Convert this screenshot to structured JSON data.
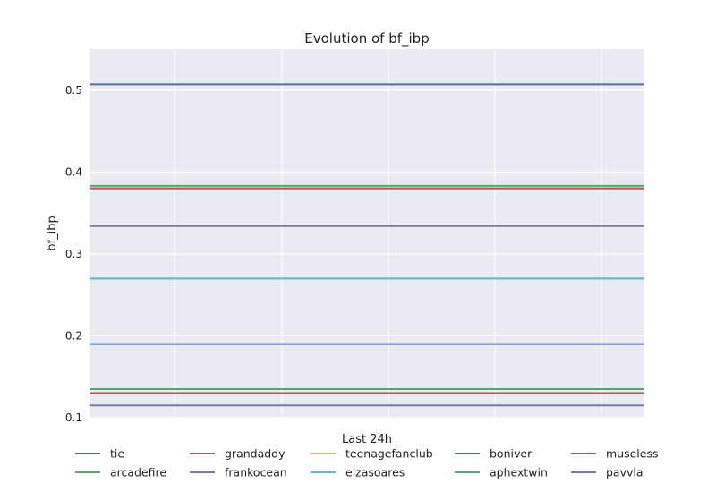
{
  "chart_data": {
    "type": "line",
    "title": "Evolution of bf_ibp",
    "xlabel": "Last 24h",
    "ylabel": "bf_ibp",
    "ylim": [
      0.1,
      0.55
    ],
    "yticks": [
      0.1,
      0.2,
      0.3,
      0.4,
      0.5
    ],
    "ytick_labels": [
      "0.1",
      "0.2",
      "0.3",
      "0.4",
      "0.5"
    ],
    "xtick_labels": [],
    "grid": true,
    "legend_placement": "bottom",
    "series": [
      {
        "name": "tie",
        "value": 0.507,
        "color": "#4c72b0"
      },
      {
        "name": "arcadefire",
        "value": 0.135,
        "color": "#55a868"
      },
      {
        "name": "grandaddy",
        "value": 0.13,
        "color": "#c44e52"
      },
      {
        "name": "frankocean",
        "value": 0.334,
        "color": "#8172b2"
      },
      {
        "name": "teenagefanclub",
        "value": 0.27,
        "color": "#ccb974"
      },
      {
        "name": "elzasoares",
        "value": 0.27,
        "color": "#64b5cd"
      },
      {
        "name": "boniver",
        "value": 0.19,
        "color": "#4c72b0"
      },
      {
        "name": "aphextwin",
        "value": 0.383,
        "color": "#55a868"
      },
      {
        "name": "museless",
        "value": 0.38,
        "color": "#c44e52"
      },
      {
        "name": "pavvla",
        "value": 0.115,
        "color": "#8172b2"
      }
    ]
  }
}
